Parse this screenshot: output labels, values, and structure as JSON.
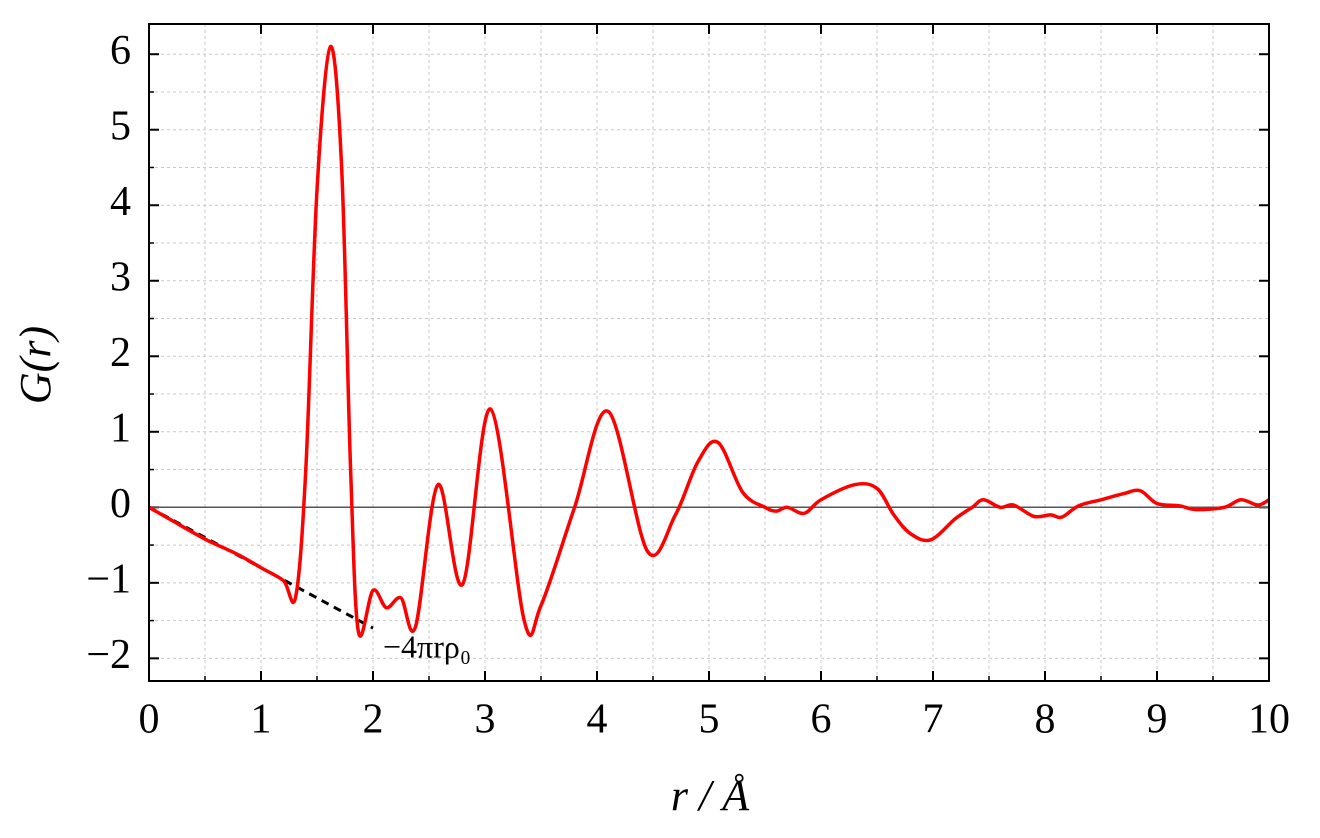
{
  "chart_data": {
    "type": "line",
    "xlabel": "r / Å",
    "ylabel": "G(r)",
    "annotation": {
      "text": "−4πrρ₀",
      "x": 2.0,
      "y": -1.6
    },
    "xlim": [
      0,
      10
    ],
    "ylim": [
      -2.3,
      6.4
    ],
    "xticks": [
      0,
      1,
      2,
      3,
      4,
      5,
      6,
      7,
      8,
      9,
      10
    ],
    "yticks": [
      {
        "value": -2,
        "label": "−2"
      },
      {
        "value": -1,
        "label": "−1"
      },
      0,
      1,
      2,
      3,
      4,
      5,
      6
    ],
    "xticks_minor": [
      0.5,
      1.5,
      2.5,
      3.5,
      4.5,
      5.5,
      6.5,
      7.5,
      8.5,
      9.5
    ],
    "yticks_minor": [
      -1.5,
      -0.5,
      0.5,
      1.5,
      2.5,
      3.5,
      4.5,
      5.5
    ],
    "grid": true,
    "hline": 0,
    "series": [
      {
        "color": "#ff0000",
        "style": "solid",
        "x": [
          0,
          0.2,
          0.5,
          0.8,
          1.0,
          1.2,
          1.31,
          1.4,
          1.5,
          1.62,
          1.72,
          1.8,
          1.87,
          2.0,
          2.12,
          2.25,
          2.38,
          2.58,
          2.8,
          3.05,
          3.35,
          3.5,
          3.8,
          4.1,
          4.45,
          4.7,
          4.9,
          5.08,
          5.3,
          5.5,
          5.6,
          5.7,
          5.85,
          6.0,
          6.3,
          6.5,
          6.65,
          6.8,
          6.98,
          7.2,
          7.35,
          7.45,
          7.6,
          7.72,
          7.9,
          8.05,
          8.15,
          8.3,
          8.5,
          8.7,
          8.85,
          9.0,
          9.2,
          9.35,
          9.6,
          9.75,
          9.9,
          10
        ],
        "values": [
          0,
          -0.17,
          -0.42,
          -0.63,
          -0.8,
          -0.97,
          -1.18,
          0.5,
          4.2,
          6.1,
          4.5,
          0.5,
          -1.65,
          -1.1,
          -1.33,
          -1.2,
          -1.58,
          0.3,
          -1.02,
          1.3,
          -1.5,
          -1.3,
          0.0,
          1.27,
          -0.58,
          -0.1,
          0.6,
          0.86,
          0.2,
          0.0,
          -0.05,
          0.0,
          -0.08,
          0.1,
          0.3,
          0.25,
          -0.1,
          -0.35,
          -0.43,
          -0.15,
          0.0,
          0.1,
          0.0,
          0.03,
          -0.12,
          -0.1,
          -0.13,
          0.02,
          0.1,
          0.18,
          0.22,
          0.05,
          0.02,
          -0.03,
          0.0,
          0.1,
          0.03,
          0.1
        ]
      },
      {
        "color": "#000000",
        "style": "dashed",
        "x": [
          0,
          2
        ],
        "values": [
          0,
          -1.6
        ]
      }
    ]
  }
}
